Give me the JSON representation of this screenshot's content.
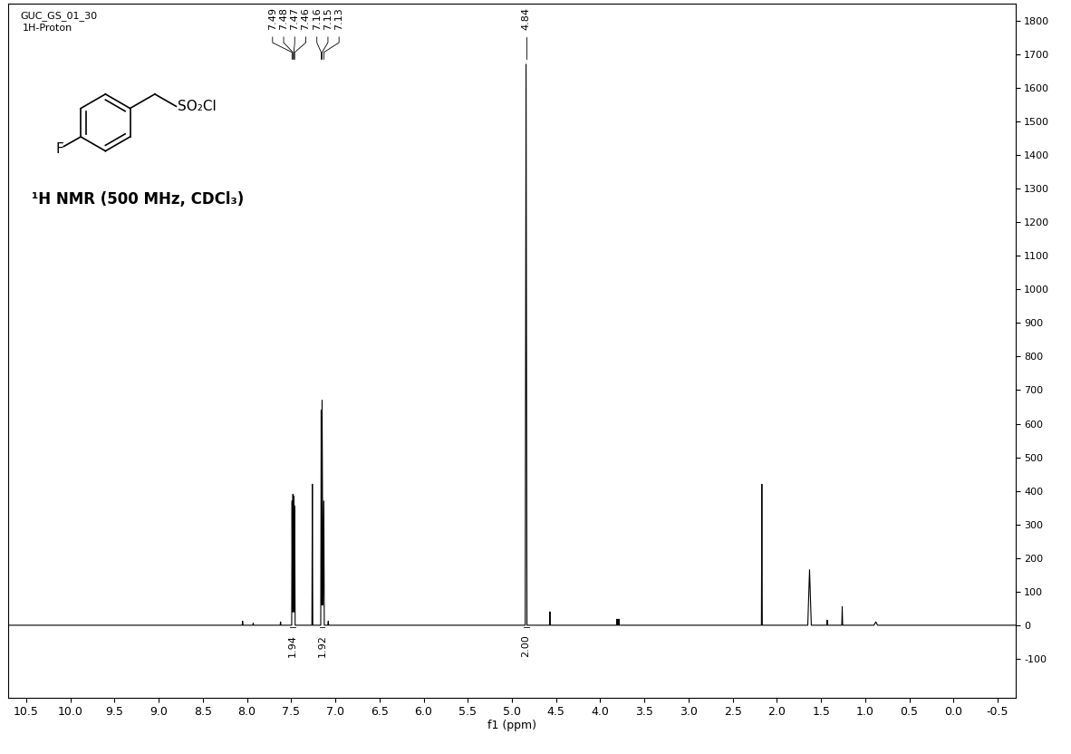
{
  "header": [
    "GUC_GS_01_30",
    "1H-Proton"
  ],
  "structure": {
    "atom": "F",
    "substituent": "SO₂Cl"
  },
  "chart_data": {
    "type": "line",
    "title": "¹H NMR (500 MHz, CDCl₃)",
    "x_label": "f1 (ppm)",
    "color": "#000000",
    "x": [
      10.7,
      8.055,
      8.05,
      8.045,
      7.935,
      7.93,
      7.925,
      7.625,
      7.62,
      7.615,
      7.494,
      7.49,
      7.485,
      7.48,
      7.475,
      7.47,
      7.465,
      7.46,
      7.455,
      7.265,
      7.26,
      7.255,
      7.165,
      7.16,
      7.155,
      7.15,
      7.14,
      7.13,
      7.125,
      7.085,
      7.08,
      7.075,
      4.85,
      4.84,
      4.83,
      4.575,
      4.57,
      4.565,
      3.815,
      3.81,
      3.805,
      3.795,
      3.79,
      3.785,
      2.175,
      2.17,
      2.165,
      1.65,
      1.63,
      1.61,
      1.435,
      1.43,
      1.425,
      1.265,
      1.26,
      1.255,
      0.9,
      0.88,
      0.86,
      -0.7
    ],
    "values": [
      0,
      0,
      12,
      0,
      0,
      6,
      0,
      0,
      10,
      0,
      0,
      370,
      40,
      390,
      40,
      385,
      40,
      355,
      0,
      0,
      420,
      0,
      0,
      640,
      60,
      670,
      60,
      370,
      0,
      0,
      12,
      0,
      0,
      1670,
      0,
      0,
      40,
      0,
      0,
      18,
      0,
      0,
      18,
      0,
      0,
      420,
      0,
      0,
      165,
      0,
      0,
      15,
      0,
      0,
      55,
      0,
      0,
      10,
      0,
      0
    ],
    "xlim": [
      10.7,
      -0.7
    ],
    "xticks": [
      10.5,
      10.0,
      9.5,
      9.0,
      8.5,
      8.0,
      7.5,
      7.0,
      6.5,
      6.0,
      5.5,
      5.0,
      4.5,
      4.0,
      3.5,
      3.0,
      2.5,
      2.0,
      1.5,
      1.0,
      0.5,
      0.0,
      -0.5
    ],
    "ylim": [
      -215,
      1850
    ],
    "yticks": [
      -100,
      0,
      100,
      200,
      300,
      400,
      500,
      600,
      700,
      800,
      900,
      1000,
      1100,
      1200,
      1300,
      1400,
      1500,
      1600,
      1700,
      1800
    ],
    "peak_labels": [
      7.49,
      7.48,
      7.47,
      7.46,
      7.16,
      7.15,
      7.13,
      4.84
    ],
    "integrals": [
      {
        "x": 7.48,
        "value": 1.94,
        "label": "1.94"
      },
      {
        "x": 7.15,
        "value": 1.92,
        "label": "1.92"
      },
      {
        "x": 4.84,
        "value": 2.0,
        "label": "2.00"
      }
    ]
  }
}
